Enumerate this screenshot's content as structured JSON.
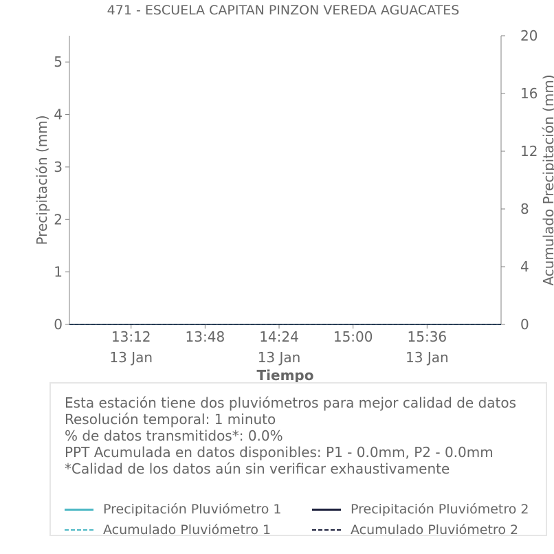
{
  "chart_data": {
    "type": "line",
    "title": "471 - ESCUELA CAPITAN PINZON VEREDA AGUACATES",
    "xlabel": "Tiempo",
    "ylabel": "Precipitación (mm)",
    "y2label": "Acumulado Precipitación (mm)",
    "x_ticks": [
      {
        "time": "13:12",
        "date": "13 Jan"
      },
      {
        "time": "13:48",
        "date": ""
      },
      {
        "time": "14:24",
        "date": "13 Jan"
      },
      {
        "time": "15:00",
        "date": ""
      },
      {
        "time": "15:36",
        "date": "13 Jan"
      }
    ],
    "y_ticks": [
      "0",
      "1",
      "2",
      "3",
      "4",
      "5"
    ],
    "y2_ticks": [
      "0",
      "4",
      "8",
      "12",
      "16",
      "20"
    ],
    "ylim": [
      0,
      5.5
    ],
    "y2lim": [
      0,
      20
    ],
    "xlim": [
      "12:42",
      "16:12"
    ],
    "grid": false,
    "series": [
      {
        "name": "Precipitación Pluviómetro 1",
        "axis": "left",
        "style": "solid",
        "color": "#4cb8c4",
        "x": [
          "12:42",
          "16:12"
        ],
        "values": [
          0,
          0
        ]
      },
      {
        "name": "Precipitación Pluviómetro 2",
        "axis": "left",
        "style": "solid",
        "color": "#1b1f3b",
        "x": [
          "12:42",
          "16:12"
        ],
        "values": [
          0,
          0
        ]
      },
      {
        "name": "Acumulado Pluviómetro 1",
        "axis": "right",
        "style": "dashed",
        "color": "#4cb8c4",
        "x": [
          "12:42",
          "16:12"
        ],
        "values": [
          0,
          0
        ]
      },
      {
        "name": "Acumulado Pluviómetro 2",
        "axis": "right",
        "style": "dashed",
        "color": "#1b1f3b",
        "x": [
          "12:42",
          "16:12"
        ],
        "values": [
          0,
          0
        ]
      }
    ]
  },
  "info": {
    "lines": [
      "Esta estación tiene dos pluviómetros para mejor calidad de datos",
      "Resolución temporal: 1 minuto",
      "% de datos transmitidos*: 0.0%",
      "PPT Acumulada en datos disponibles: P1 - 0.0mm, P2 - 0.0mm",
      "*Calidad de los datos aún sin verificar exhaustivamente"
    ]
  },
  "legend": {
    "placement": "bottom",
    "items": [
      {
        "label": "Precipitación Pluviómetro 1",
        "color": "#4cb8c4",
        "style": "solid"
      },
      {
        "label": "Precipitación Pluviómetro 2",
        "color": "#1b1f3b",
        "style": "solid"
      },
      {
        "label": "Acumulado Pluviómetro 1",
        "color": "#4cb8c4",
        "style": "dashed"
      },
      {
        "label": "Acumulado Pluviómetro 2",
        "color": "#1b1f3b",
        "style": "dashed"
      }
    ]
  }
}
